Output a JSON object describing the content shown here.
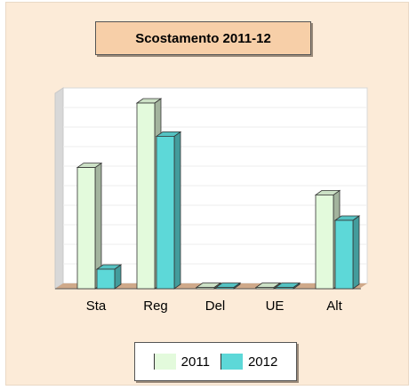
{
  "chart_data": {
    "type": "bar",
    "title": "Scostamento 2011-12",
    "categories": [
      "Sta",
      "Reg",
      "Del",
      "UE",
      "Alt"
    ],
    "series": [
      {
        "name": "2011",
        "values": [
          62,
          95,
          0,
          0,
          48
        ]
      },
      {
        "name": "2012",
        "values": [
          10,
          78,
          0,
          0,
          35
        ]
      }
    ],
    "ylim": [
      0,
      100
    ],
    "grid": true,
    "legend": "bottom",
    "colors": {
      "2011": "#e3fadc",
      "2012": "#5dd8d8",
      "background": "#fcebd8",
      "title_box": "#f7cfa8"
    }
  }
}
